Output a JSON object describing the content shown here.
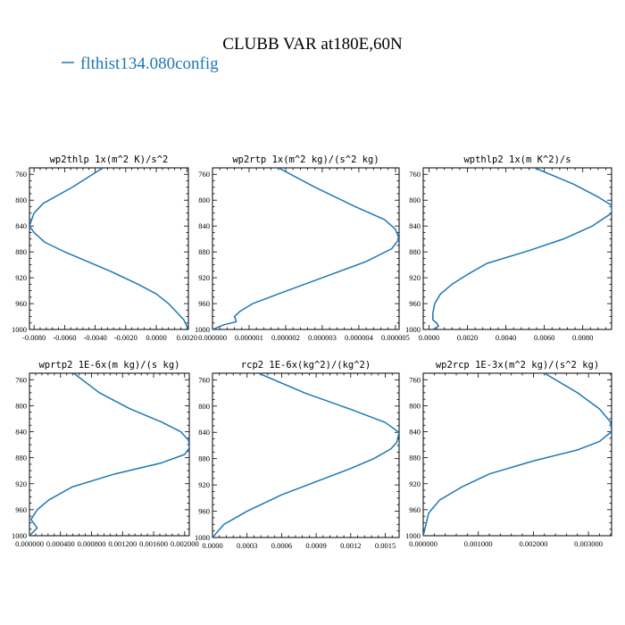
{
  "figure": {
    "title": "CLUBB VAR at180E,60N",
    "legend": [
      {
        "label": "flthist134.080config",
        "color": "#1f77b4"
      }
    ]
  },
  "chart_data": [
    {
      "type": "line",
      "title": "wp2thlp  1x(m^2 K)/s^2",
      "series_color": "#1f77b4",
      "xlim": [
        -0.0083,
        0.0021
      ],
      "ylim": [
        1000,
        750
      ],
      "xticks": [
        -0.008,
        -0.006,
        -0.004,
        -0.002,
        0.0,
        0.002
      ],
      "xtick_labels": [
        "-0.0080",
        "-0.0060",
        "-0.0040",
        "-0.0020",
        "0.0000",
        "0.0020"
      ],
      "yticks": [
        760,
        800,
        840,
        880,
        920,
        960,
        1000
      ],
      "ytick_labels": [
        "760",
        "800",
        "840",
        "880",
        "920",
        "960",
        "1000"
      ],
      "series": [
        {
          "name": "flthist134.080config",
          "x": [
            -0.0035,
            -0.0055,
            -0.0074,
            -0.008,
            -0.0083,
            -0.008,
            -0.0073,
            -0.006,
            -0.0045,
            -0.003,
            -0.0012,
            0.0,
            0.0008,
            0.0014,
            0.0018,
            0.002,
            0.0021
          ],
          "y": [
            750,
            780,
            805,
            820,
            840,
            850,
            865,
            880,
            895,
            910,
            930,
            945,
            960,
            975,
            985,
            995,
            1000
          ]
        }
      ]
    },
    {
      "type": "line",
      "title": "wp2rtp  1x(m^2 kg)/(s^2 kg)",
      "series_color": "#1f77b4",
      "xlim": [
        0.0,
        5.1e-06
      ],
      "ylim": [
        1000,
        750
      ],
      "xticks": [
        0.0,
        1e-06,
        2e-06,
        3e-06,
        4e-06,
        5e-06
      ],
      "xtick_labels": [
        "0.000000",
        "0.000001",
        "0.000002",
        "0.000003",
        "0.000004",
        "0.000005"
      ],
      "yticks": [
        760,
        800,
        840,
        880,
        920,
        960,
        1000
      ],
      "ytick_labels": [
        "760",
        "800",
        "840",
        "880",
        "920",
        "960",
        "1000"
      ],
      "series": [
        {
          "name": "flthist134.080config",
          "x": [
            1.8e-06,
            2.8e-06,
            3.9e-06,
            4.7e-06,
            5e-06,
            5.1e-06,
            4.9e-06,
            4.2e-06,
            3e-06,
            1.8e-06,
            1.1e-06,
            7.5e-07,
            6e-07,
            6.5e-07,
            3e-07,
            0.0
          ],
          "y": [
            750,
            780,
            810,
            830,
            845,
            860,
            875,
            895,
            920,
            945,
            960,
            972,
            980,
            988,
            993,
            1000
          ]
        }
      ]
    },
    {
      "type": "line",
      "title": "wpthlp2  1x(m K^2)/s",
      "series_color": "#1f77b4",
      "xlim": [
        -0.0003,
        0.0095
      ],
      "ylim": [
        1000,
        750
      ],
      "xticks": [
        0.0,
        0.002,
        0.004,
        0.006,
        0.008
      ],
      "xtick_labels": [
        "0.0000",
        "0.0020",
        "0.0040",
        "0.0060",
        "0.0080"
      ],
      "yticks": [
        760,
        800,
        840,
        880,
        920,
        960,
        1000
      ],
      "ytick_labels": [
        "760",
        "800",
        "840",
        "880",
        "920",
        "960",
        "1000"
      ],
      "series": [
        {
          "name": "flthist134.080config",
          "x": [
            0.0055,
            0.0075,
            0.0088,
            0.0095,
            0.0095,
            0.0085,
            0.007,
            0.0052,
            0.003,
            0.002,
            0.0012,
            0.0006,
            0.0003,
            0.0002,
            0.0002,
            0.0004,
            0.0005,
            0.0002
          ],
          "y": [
            750,
            775,
            795,
            808,
            820,
            840,
            860,
            878,
            898,
            915,
            930,
            945,
            960,
            975,
            985,
            990,
            995,
            1000
          ]
        }
      ]
    },
    {
      "type": "line",
      "title": "wprtp2  1E-6x(m kg)/(s kg)",
      "series_color": "#1f77b4",
      "xlim": [
        0.0,
        0.00206
      ],
      "ylim": [
        1000,
        750
      ],
      "xticks": [
        0.0,
        0.0004,
        0.0008,
        0.0012,
        0.0016,
        0.002
      ],
      "xtick_labels": [
        "0.000000",
        "0.000400",
        "0.000800",
        "0.001200",
        "0.001600",
        "0.002000"
      ],
      "yticks": [
        760,
        800,
        840,
        880,
        920,
        960,
        1000
      ],
      "ytick_labels": [
        "760",
        "800",
        "840",
        "880",
        "920",
        "960",
        "1000"
      ],
      "series": [
        {
          "name": "flthist134.080config",
          "x": [
            0.00057,
            0.0009,
            0.0013,
            0.0017,
            0.00195,
            0.00205,
            0.00206,
            0.002,
            0.0017,
            0.0011,
            0.00055,
            0.00025,
            0.0001,
            2e-05,
            0.0001,
            0.0
          ],
          "y": [
            750,
            780,
            805,
            825,
            840,
            853,
            865,
            875,
            888,
            905,
            925,
            945,
            960,
            975,
            988,
            1000
          ]
        }
      ]
    },
    {
      "type": "line",
      "title": "rcp2  1E-6x(kg^2)/(kg^2)",
      "series_color": "#1f77b4",
      "xlim": [
        0.0,
        0.00162
      ],
      "ylim": [
        1000,
        750
      ],
      "xticks": [
        0.0,
        0.0003,
        0.0006,
        0.0009,
        0.0012,
        0.0015
      ],
      "xtick_labels": [
        "0.0000",
        "0.0003",
        "0.0006",
        "0.0009",
        "0.0012",
        "0.0015"
      ],
      "yticks": [
        760,
        800,
        840,
        880,
        920,
        960,
        1000
      ],
      "ytick_labels": [
        "760",
        "800",
        "840",
        "880",
        "920",
        "960",
        "1000"
      ],
      "series": [
        {
          "name": "flthist134.080config",
          "x": [
            0.0004,
            0.0008,
            0.0012,
            0.0015,
            0.00162,
            0.0016,
            0.00155,
            0.0014,
            0.0012,
            0.0009,
            0.0006,
            0.0003,
            0.0001,
            0.0
          ],
          "y": [
            750,
            780,
            805,
            825,
            840,
            855,
            865,
            880,
            895,
            915,
            935,
            960,
            980,
            1000
          ]
        }
      ]
    },
    {
      "type": "line",
      "title": "wp2rcp  1E-3x(m^2 kg)/(s^2 kg)",
      "series_color": "#1f77b4",
      "xlim": [
        0.0,
        0.00342
      ],
      "ylim": [
        1000,
        750
      ],
      "xticks": [
        0.0,
        0.001,
        0.002,
        0.003
      ],
      "xtick_labels": [
        "0.000000",
        "0.001000",
        "0.002000",
        "0.003000"
      ],
      "yticks": [
        760,
        800,
        840,
        880,
        920,
        960,
        1000
      ],
      "ytick_labels": [
        "760",
        "800",
        "840",
        "880",
        "920",
        "960",
        "1000"
      ],
      "series": [
        {
          "name": "flthist134.080config",
          "x": [
            0.0022,
            0.0028,
            0.0032,
            0.0034,
            0.00342,
            0.0032,
            0.0028,
            0.002,
            0.0012,
            0.0007,
            0.0003,
            0.0001,
            0.0
          ],
          "y": [
            750,
            780,
            805,
            825,
            840,
            855,
            868,
            885,
            905,
            925,
            945,
            965,
            1000
          ]
        }
      ]
    }
  ]
}
